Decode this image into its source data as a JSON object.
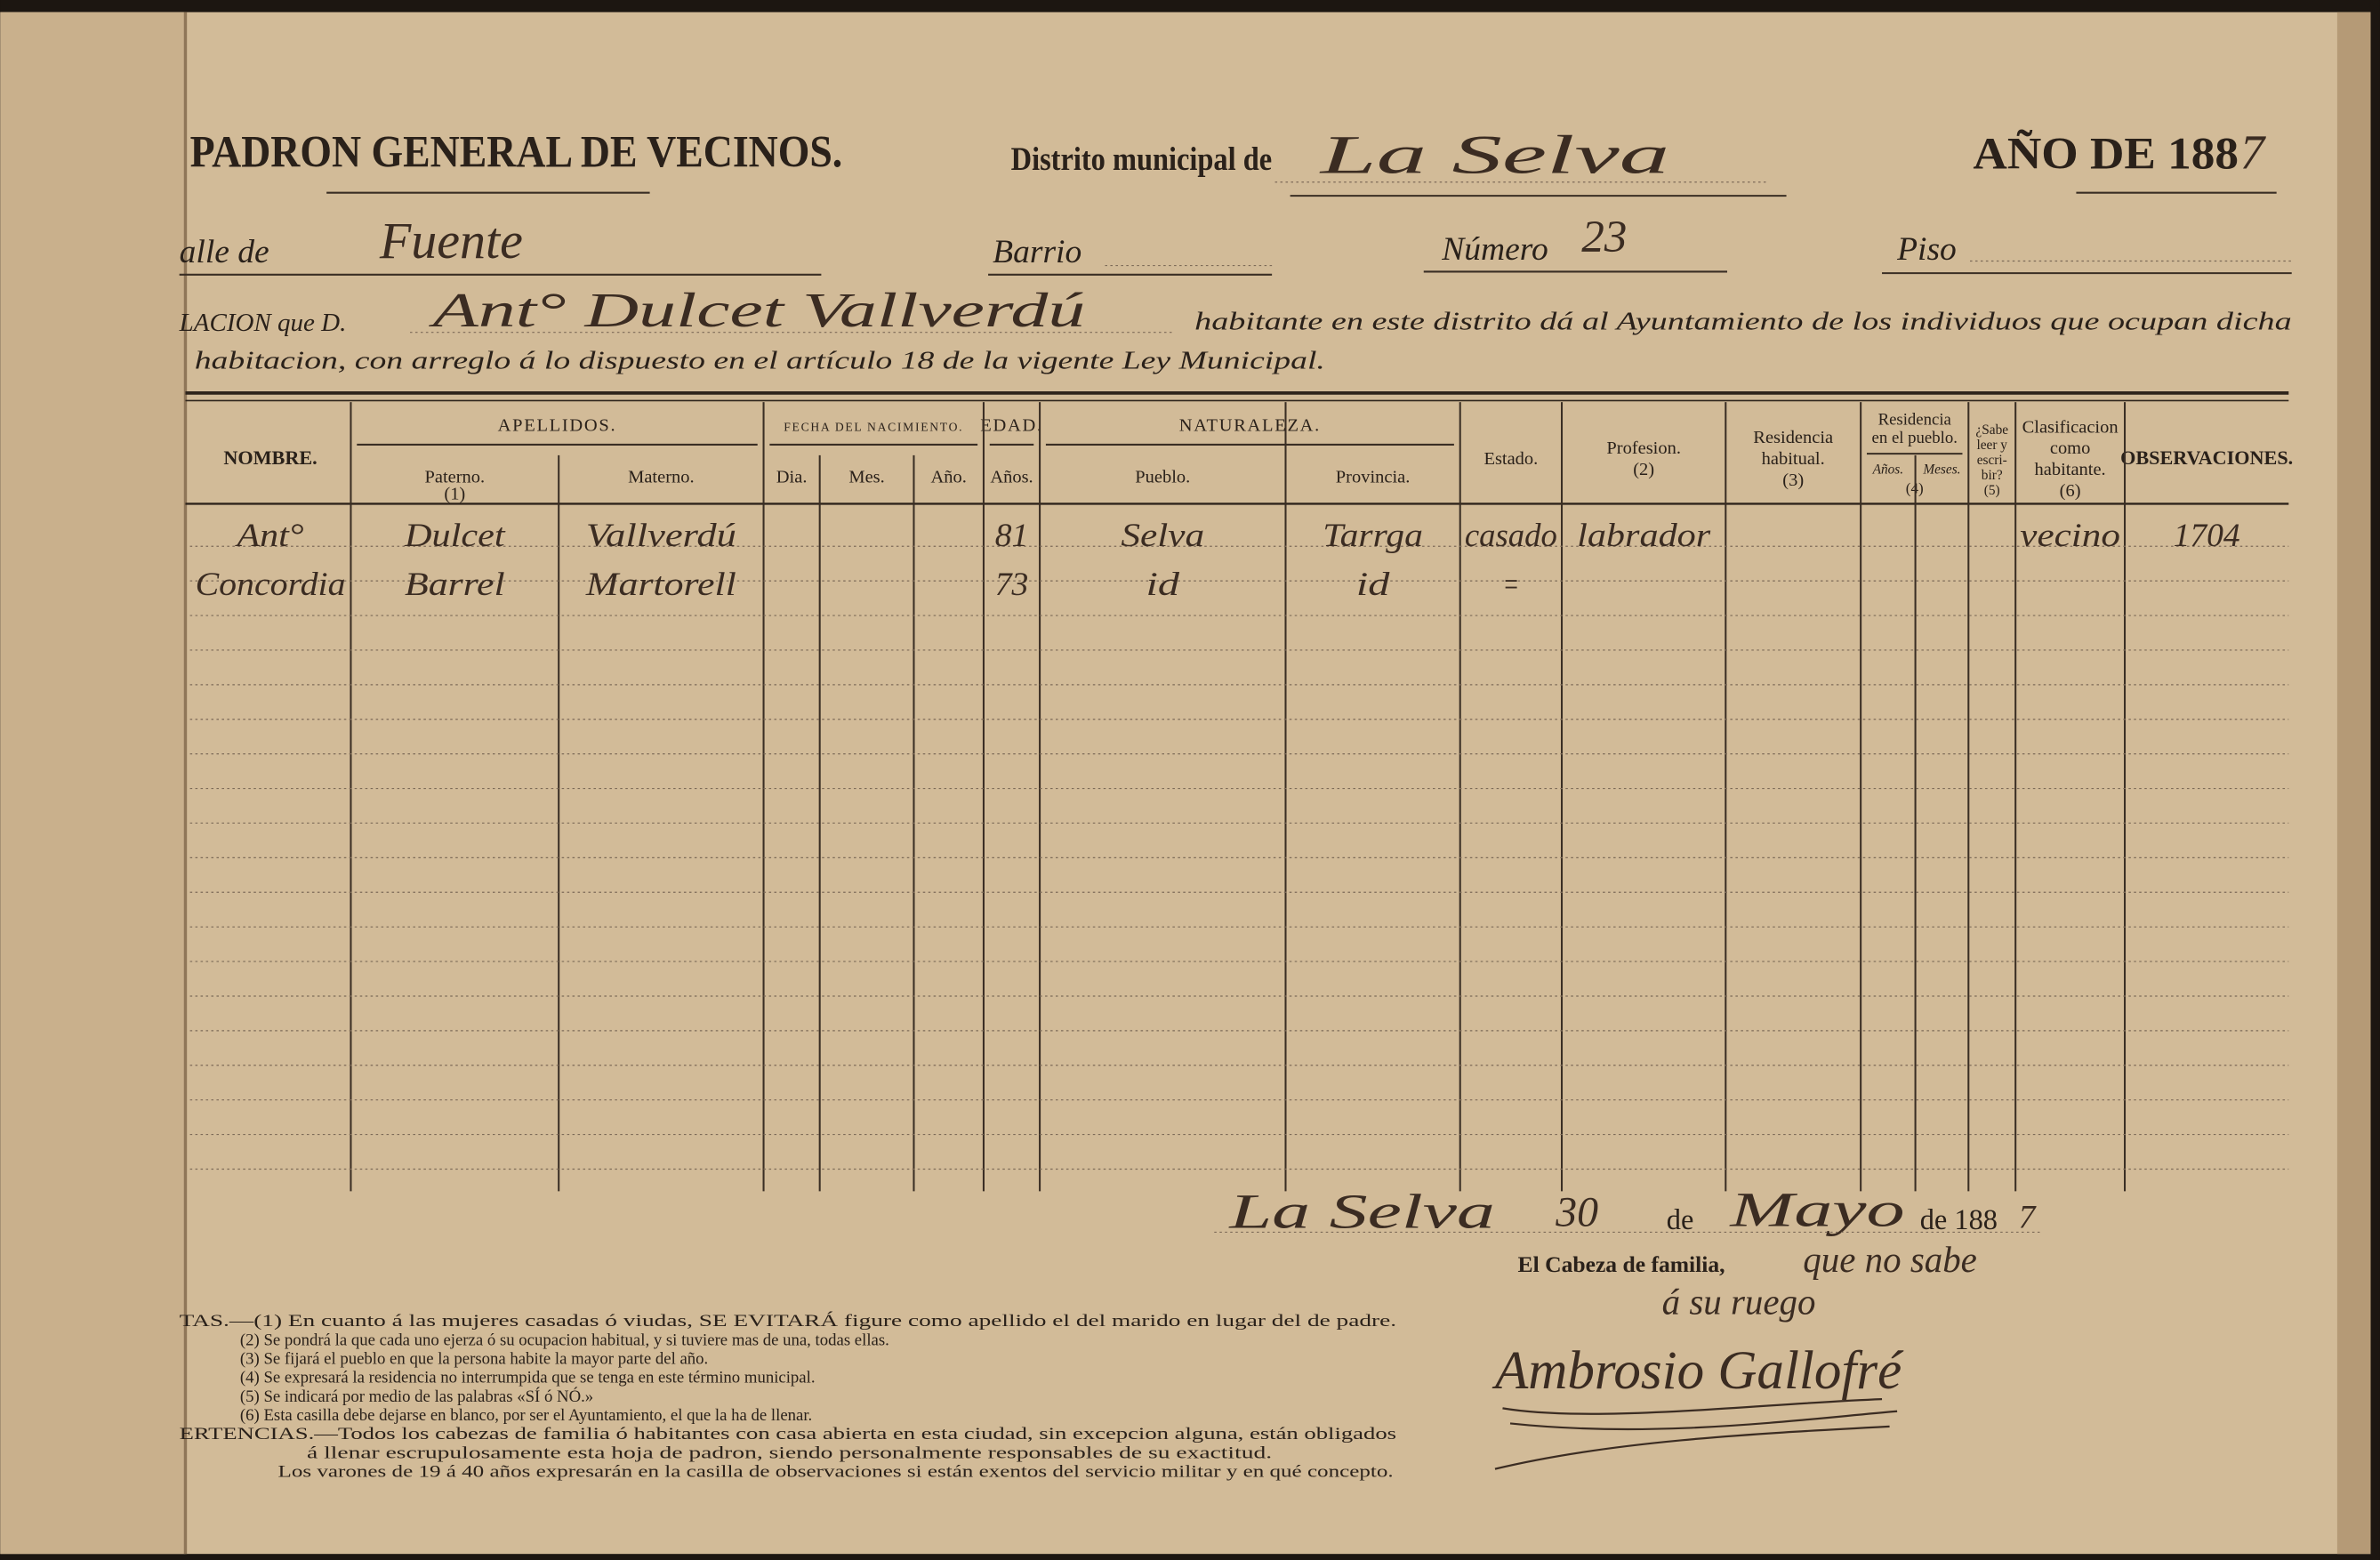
{
  "header": {
    "title": "PADRON GENERAL DE VECINOS.",
    "district_label": "Distrito municipal de",
    "district": "La Selva",
    "year_label": "AÑO DE 188",
    "year_digit": "7"
  },
  "address": {
    "street_label": "alle de",
    "street": "Fuente",
    "barrio_label": "Barrio",
    "numero_label": "Número",
    "numero": "23",
    "piso_label": "Piso"
  },
  "statement": {
    "prefix": "LACION que D.",
    "name": "Ant° Dulcet Vallverdú",
    "line1": "habitante en este distrito dá al Ayuntamiento de los individuos que ocupan dicha",
    "line2": "habitacion, con arreglo á lo dispuesto en el artículo 18 de la vigente Ley Municipal."
  },
  "table": {
    "columns": [
      {
        "label": [
          "NOMBRE."
        ]
      },
      {
        "group": [
          "APELLIDOS."
        ],
        "columns": [
          {
            "label": [
              "Paterno.",
              "(1)"
            ]
          },
          {
            "label": [
              "Materno."
            ]
          }
        ]
      },
      {
        "group": [
          "FECHA DEL NACIMIENTO."
        ],
        "columns": [
          {
            "label": [
              "Dia."
            ]
          },
          {
            "label": [
              "Mes."
            ]
          },
          {
            "label": [
              "Año."
            ]
          }
        ]
      },
      {
        "group": [
          "EDAD."
        ],
        "columns": [
          {
            "label": [
              "Años."
            ]
          }
        ]
      },
      {
        "group": [
          "NATURALEZA."
        ],
        "columns": [
          {
            "label": [
              "Pueblo."
            ]
          },
          {
            "label": [
              "Provincia."
            ]
          }
        ]
      },
      {
        "label": [
          "Estado."
        ]
      },
      {
        "label": [
          "Profesion.",
          "(2)"
        ]
      },
      {
        "label": [
          "Residencia",
          "habitual.",
          "(3)"
        ]
      },
      {
        "group": [
          "Residencia",
          "en el pueblo."
        ],
        "ref": "(4)",
        "columns": [
          {
            "label": [
              "Años."
            ]
          },
          {
            "label": [
              "Meses."
            ]
          }
        ]
      },
      {
        "label": [
          "¿Sabe",
          "leer y",
          "escri-",
          "bir?",
          "(5)"
        ]
      },
      {
        "label": [
          "Clasificacion",
          "como",
          "habitante.",
          "(6)"
        ]
      },
      {
        "label": [
          "OBSERVACIONES."
        ]
      }
    ],
    "rows": [
      [
        "Ant°",
        "Dulcet",
        "Vallverdú",
        null,
        null,
        null,
        "81",
        "Selva",
        "Tarrga",
        "casado",
        "labrador",
        null,
        null,
        null,
        null,
        "vecino",
        "1704"
      ],
      [
        "Concordia",
        "Barrel",
        "Martorell",
        null,
        null,
        null,
        "73",
        "id",
        "id",
        "=",
        null,
        null,
        null,
        null,
        null,
        null,
        null
      ]
    ]
  },
  "closing": {
    "place": "La Selva",
    "day": "30",
    "de": "de",
    "month": "Mayo",
    "year_label": "de 188",
    "year_digit": "7",
    "head_label": "El Cabeza de familia,",
    "note1": "que no sabe",
    "note2": "á su ruego",
    "signature": "Ambrosio Gallofré"
  },
  "notes": [
    "TAS.—(1)  En cuanto á las mujeres casadas ó viudas, SE EVITARÁ figure como apellido el del marido en lugar del de padre.",
    "(2)  Se pondrá la que cada uno ejerza ó su ocupacion habitual, y si tuviere mas de una, todas ellas.",
    "(3)  Se fijará el pueblo en que la persona habite la mayor parte del año.",
    "(4)  Se expresará la residencia no interrumpida que se tenga en este término municipal.",
    "(5)  Se indicará por medio de las palabras «SÍ ó NÓ.»",
    "(6)  Esta casilla debe dejarse en blanco, por ser el Ayuntamiento, el que la ha de llenar.",
    "ERTENCIAS.—Todos los cabezas de familia ó habitantes con casa abierta en esta ciudad, sin excepcion alguna, están obligados",
    "á llenar escrupulosamente esta hoja de padron, siendo personalmente responsables de su exactitud.",
    "Los varones de 19 á 40 años expresarán en la casilla de observaciones si están exentos del servicio militar y en qué concepto."
  ]
}
